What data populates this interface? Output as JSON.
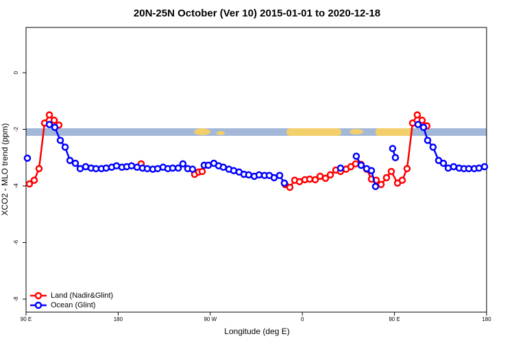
{
  "chart_data": {
    "type": "line",
    "title": "20N-25N October (Ver 10)   2015-01-01 to 2020-12-18",
    "x_label": "Longitude (deg E)",
    "y_label": "XCO2 - MLO trend (ppm)",
    "xlim": [
      90,
      540
    ],
    "xticks": [
      {
        "value": 90,
        "label": "90 E"
      },
      {
        "value": 180,
        "label": "180"
      },
      {
        "value": 270,
        "label": "90 W"
      },
      {
        "value": 360,
        "label": "0"
      },
      {
        "value": 450,
        "label": "90 E"
      },
      {
        "value": 540,
        "label": "180"
      }
    ],
    "ylim": [
      -8.46,
      1.6
    ],
    "yticks": [
      0,
      -2,
      -4,
      -6,
      -8
    ],
    "legend": "bottomleft",
    "series": [
      {
        "name": "Land (Nadir&Glint)",
        "color": "#ff0000",
        "x": [
          93.3,
          98.0,
          102.7,
          108.1,
          112.8,
          117.5,
          122.1,
          null,
          202.5,
          null,
          254.7,
          258.7,
          262.1,
          null,
          343.1,
          347.8,
          352.5,
          357.2,
          362.5,
          367.2,
          372.6,
          377.3,
          382.6,
          387.3,
          392.7,
          397.3,
          402.7,
          407.4,
          412.1,
          417.4,
          422.8,
          427.5,
          432.2,
          436.9,
          442.2,
          446.9,
          453.0,
          457.6,
          462.3,
          467.7,
          472.3,
          477.0,
          481.7
        ],
        "values": [
          -3.93,
          -3.8,
          -3.39,
          -1.78,
          -1.49,
          -1.68,
          -1.85,
          null,
          -3.22,
          null,
          -3.59,
          -3.51,
          -3.49,
          null,
          -3.95,
          -4.05,
          -3.8,
          -3.85,
          -3.78,
          -3.76,
          -3.78,
          -3.66,
          -3.73,
          -3.61,
          -3.44,
          -3.49,
          -3.41,
          -3.32,
          -3.22,
          -3.24,
          -3.41,
          -3.76,
          -3.8,
          -3.95,
          -3.71,
          -3.49,
          -3.9,
          -3.8,
          -3.39,
          -1.78,
          -1.49,
          -1.68,
          -1.88
        ]
      },
      {
        "name": "Ocean (Glint)",
        "color": "#0000ff",
        "x": [
          91.3,
          null,
          112.8,
          118.1,
          123.5,
          128.2,
          132.9,
          138.2,
          142.9,
          148.3,
          153.6,
          158.3,
          163.7,
          168.3,
          173.7,
          178.4,
          183.7,
          188.4,
          193.1,
          198.5,
          203.8,
          208.5,
          213.9,
          218.6,
          223.9,
          228.6,
          233.3,
          238.7,
          243.3,
          248.0,
          252.7,
          null,
          264.1,
          268.1,
          273.5,
          278.2,
          282.8,
          288.2,
          292.9,
          298.2,
          302.9,
          307.6,
          313.0,
          317.7,
          323.0,
          327.7,
          332.4,
          337.8,
          342.4,
          null,
          397.3,
          null,
          412.7,
          417.4,
          422.8,
          427.5,
          431.5,
          null,
          448.2,
          450.9,
          null,
          473.0,
          478.4,
          482.4,
          487.7,
          493.1,
          497.8,
          502.5,
          507.8,
          513.2,
          517.9,
          522.6,
          528.0,
          532.6,
          538.0
        ],
        "values": [
          -3.02,
          null,
          -1.83,
          -1.93,
          -2.39,
          -2.63,
          -3.1,
          -3.2,
          -3.39,
          -3.32,
          -3.37,
          -3.39,
          -3.39,
          -3.37,
          -3.34,
          -3.29,
          -3.34,
          -3.32,
          -3.29,
          -3.34,
          -3.37,
          -3.39,
          -3.41,
          -3.39,
          -3.34,
          -3.39,
          -3.37,
          -3.37,
          -3.22,
          -3.39,
          -3.41,
          null,
          -3.27,
          -3.27,
          -3.2,
          -3.29,
          -3.34,
          -3.41,
          -3.46,
          -3.51,
          -3.59,
          -3.61,
          -3.66,
          -3.61,
          -3.63,
          -3.63,
          -3.71,
          -3.63,
          -3.9,
          null,
          -3.37,
          null,
          -2.95,
          -3.27,
          -3.39,
          -3.46,
          -4.02,
          null,
          -2.68,
          -3.0,
          null,
          -1.83,
          -1.93,
          -2.39,
          -2.63,
          -3.1,
          -3.2,
          -3.37,
          -3.32,
          -3.37,
          -3.39,
          -3.39,
          -3.39,
          -3.37,
          -3.32
        ]
      }
    ]
  }
}
